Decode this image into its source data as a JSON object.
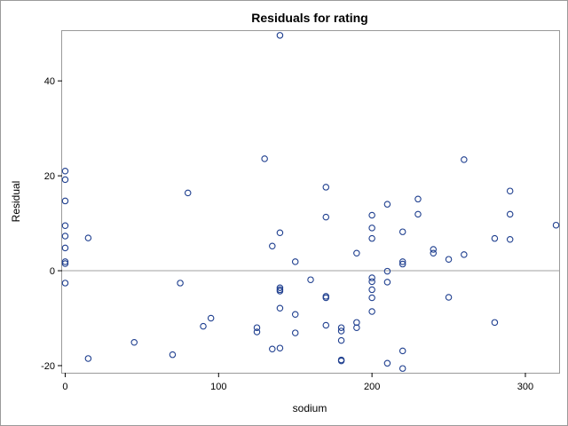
{
  "chart_data": {
    "type": "scatter",
    "title": "Residuals for rating",
    "xlabel": "sodium",
    "ylabel": "Residual",
    "xlim": [
      -2,
      322
    ],
    "ylim": [
      -21.5,
      50.5
    ],
    "xticks": [
      0,
      100,
      200,
      300
    ],
    "yticks": [
      -20,
      0,
      20,
      40
    ],
    "reference_line_y": 0,
    "marker_color": "#1f3f8f",
    "frame_color": "#9a9a9a",
    "reference_line_color": "#a0a0a0",
    "points": [
      {
        "x": 0,
        "y": 21.0
      },
      {
        "x": 0,
        "y": 19.2
      },
      {
        "x": 0,
        "y": 14.7
      },
      {
        "x": 0,
        "y": 9.5
      },
      {
        "x": 0,
        "y": 7.3
      },
      {
        "x": 0,
        "y": 4.8
      },
      {
        "x": 0,
        "y": 1.9
      },
      {
        "x": 0,
        "y": 1.5
      },
      {
        "x": 0,
        "y": -2.6
      },
      {
        "x": 15,
        "y": 6.9
      },
      {
        "x": 15,
        "y": -18.5
      },
      {
        "x": 45,
        "y": -15.1
      },
      {
        "x": 70,
        "y": -17.7
      },
      {
        "x": 75,
        "y": -2.6
      },
      {
        "x": 80,
        "y": 16.4
      },
      {
        "x": 90,
        "y": -11.7
      },
      {
        "x": 95,
        "y": -10.0
      },
      {
        "x": 125,
        "y": -12.0
      },
      {
        "x": 125,
        "y": -12.9
      },
      {
        "x": 130,
        "y": 23.6
      },
      {
        "x": 135,
        "y": 5.2
      },
      {
        "x": 135,
        "y": -16.5
      },
      {
        "x": 140,
        "y": 49.6
      },
      {
        "x": 140,
        "y": 8.0
      },
      {
        "x": 140,
        "y": -3.6
      },
      {
        "x": 140,
        "y": -4.0
      },
      {
        "x": 140,
        "y": -4.3
      },
      {
        "x": 140,
        "y": -7.9
      },
      {
        "x": 140,
        "y": -16.3
      },
      {
        "x": 150,
        "y": 1.9
      },
      {
        "x": 150,
        "y": -9.2
      },
      {
        "x": 150,
        "y": -13.1
      },
      {
        "x": 160,
        "y": -1.9
      },
      {
        "x": 170,
        "y": 17.6
      },
      {
        "x": 170,
        "y": 11.3
      },
      {
        "x": 170,
        "y": -5.4
      },
      {
        "x": 170,
        "y": -5.7
      },
      {
        "x": 170,
        "y": -11.5
      },
      {
        "x": 180,
        "y": -12.0
      },
      {
        "x": 180,
        "y": -12.7
      },
      {
        "x": 180,
        "y": -14.7
      },
      {
        "x": 180,
        "y": -18.8
      },
      {
        "x": 180,
        "y": -19.0
      },
      {
        "x": 190,
        "y": 3.7
      },
      {
        "x": 190,
        "y": -10.9
      },
      {
        "x": 190,
        "y": -12.0
      },
      {
        "x": 200,
        "y": 11.7
      },
      {
        "x": 200,
        "y": 9.0
      },
      {
        "x": 200,
        "y": 6.8
      },
      {
        "x": 200,
        "y": -1.5
      },
      {
        "x": 200,
        "y": -2.3
      },
      {
        "x": 200,
        "y": -4.0
      },
      {
        "x": 200,
        "y": -5.7
      },
      {
        "x": 200,
        "y": -8.6
      },
      {
        "x": 210,
        "y": 14.0
      },
      {
        "x": 210,
        "y": -0.1
      },
      {
        "x": 210,
        "y": -2.4
      },
      {
        "x": 210,
        "y": -19.5
      },
      {
        "x": 220,
        "y": 8.2
      },
      {
        "x": 220,
        "y": 1.9
      },
      {
        "x": 220,
        "y": 1.4
      },
      {
        "x": 220,
        "y": -16.9
      },
      {
        "x": 220,
        "y": -20.6
      },
      {
        "x": 230,
        "y": 15.1
      },
      {
        "x": 230,
        "y": 11.9
      },
      {
        "x": 240,
        "y": 4.5
      },
      {
        "x": 240,
        "y": 3.7
      },
      {
        "x": 250,
        "y": 2.4
      },
      {
        "x": 250,
        "y": -5.6
      },
      {
        "x": 260,
        "y": 23.4
      },
      {
        "x": 260,
        "y": 3.4
      },
      {
        "x": 280,
        "y": 6.8
      },
      {
        "x": 280,
        "y": -10.9
      },
      {
        "x": 290,
        "y": 16.8
      },
      {
        "x": 290,
        "y": 11.9
      },
      {
        "x": 290,
        "y": 6.6
      },
      {
        "x": 320,
        "y": 9.6
      }
    ]
  }
}
